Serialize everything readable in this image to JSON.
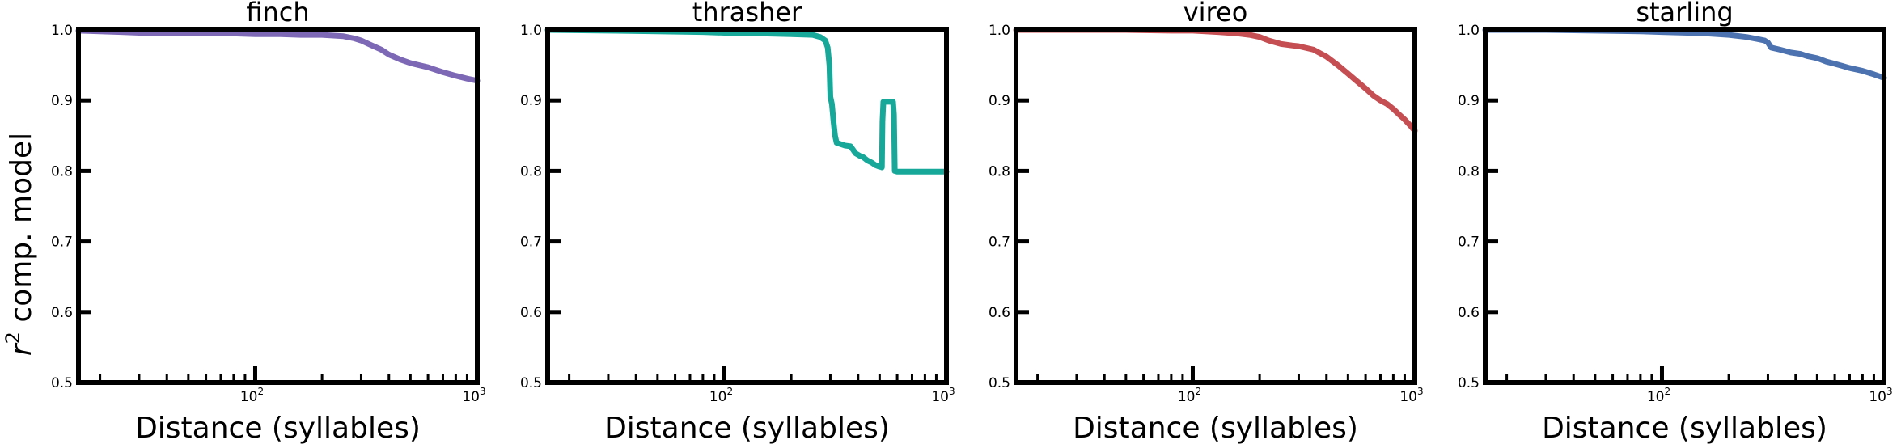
{
  "figure": {
    "ylabel_base": "r",
    "ylabel_sup": "2",
    "ylabel_rest": " comp. model"
  },
  "chart_data": [
    {
      "type": "line",
      "title": "finch",
      "xlabel": "Distance (syllables)",
      "xscale": "log",
      "xlim": [
        16,
        1000
      ],
      "ylim": [
        0.5,
        1.0
      ],
      "yticks": [
        0.5,
        0.6,
        0.7,
        0.8,
        0.9,
        1.0
      ],
      "color": "#7c68b5",
      "series": [
        {
          "x": [
            16,
            20,
            25,
            30,
            40,
            50,
            60,
            80,
            100,
            130,
            160,
            200,
            250,
            280,
            300,
            330,
            370,
            400,
            450,
            500,
            600,
            700,
            800,
            900,
            1000
          ],
          "y": [
            0.999,
            0.998,
            0.997,
            0.996,
            0.996,
            0.996,
            0.995,
            0.995,
            0.994,
            0.994,
            0.993,
            0.993,
            0.991,
            0.988,
            0.985,
            0.979,
            0.972,
            0.965,
            0.958,
            0.953,
            0.947,
            0.94,
            0.935,
            0.931,
            0.928
          ]
        }
      ]
    },
    {
      "type": "line",
      "title": "thrasher",
      "xlabel": "Distance (syllables)",
      "xscale": "log",
      "xlim": [
        16,
        1000
      ],
      "ylim": [
        0.5,
        1.0
      ],
      "yticks": [
        0.5,
        0.6,
        0.7,
        0.8,
        0.9,
        1.0
      ],
      "color": "#17a89a",
      "series": [
        {
          "x": [
            16,
            30,
            50,
            80,
            100,
            150,
            200,
            250,
            270,
            285,
            292,
            297,
            300,
            305,
            310,
            315,
            320,
            335,
            350,
            370,
            390,
            410,
            420,
            440,
            460,
            480,
            500,
            505,
            510,
            512,
            515,
            520,
            540,
            560,
            575,
            580,
            585,
            600,
            700,
            800,
            1000
          ],
          "y": [
            1.0,
            0.999,
            0.998,
            0.997,
            0.996,
            0.995,
            0.994,
            0.993,
            0.99,
            0.985,
            0.975,
            0.95,
            0.905,
            0.895,
            0.87,
            0.85,
            0.84,
            0.838,
            0.836,
            0.835,
            0.825,
            0.821,
            0.82,
            0.815,
            0.812,
            0.808,
            0.806,
            0.808,
            0.81,
            0.805,
            0.87,
            0.898,
            0.898,
            0.898,
            0.898,
            0.88,
            0.8,
            0.799,
            0.799,
            0.799,
            0.799
          ]
        }
      ]
    },
    {
      "type": "line",
      "title": "vireo",
      "xlabel": "Distance (syllables)",
      "xscale": "log",
      "xlim": [
        16,
        1000
      ],
      "ylim": [
        0.5,
        1.0
      ],
      "yticks": [
        0.5,
        0.6,
        0.7,
        0.8,
        0.9,
        1.0
      ],
      "color": "#c44e52",
      "series": [
        {
          "x": [
            16,
            30,
            50,
            80,
            100,
            130,
            160,
            180,
            200,
            220,
            250,
            280,
            300,
            350,
            400,
            450,
            500,
            550,
            600,
            650,
            700,
            750,
            800,
            850,
            900,
            950,
            1000
          ],
          "y": [
            1.0,
            1.0,
            1.0,
            0.999,
            0.999,
            0.997,
            0.995,
            0.993,
            0.99,
            0.985,
            0.98,
            0.978,
            0.977,
            0.972,
            0.962,
            0.95,
            0.938,
            0.927,
            0.917,
            0.907,
            0.9,
            0.895,
            0.888,
            0.88,
            0.873,
            0.865,
            0.857
          ]
        }
      ]
    },
    {
      "type": "line",
      "title": "starling",
      "xlabel": "Distance (syllables)",
      "xscale": "log",
      "xlim": [
        16,
        1000
      ],
      "ylim": [
        0.5,
        1.0
      ],
      "yticks": [
        0.5,
        0.6,
        0.7,
        0.8,
        0.9,
        1.0
      ],
      "color": "#4c72b0",
      "series": [
        {
          "x": [
            16,
            30,
            50,
            80,
            100,
            130,
            160,
            200,
            240,
            270,
            290,
            300,
            310,
            340,
            380,
            420,
            450,
            500,
            550,
            600,
            650,
            700,
            800,
            900,
            1000
          ],
          "y": [
            1.0,
            1.0,
            0.999,
            0.998,
            0.997,
            0.996,
            0.995,
            0.993,
            0.99,
            0.987,
            0.985,
            0.982,
            0.975,
            0.972,
            0.968,
            0.966,
            0.963,
            0.96,
            0.955,
            0.952,
            0.949,
            0.946,
            0.942,
            0.937,
            0.932
          ]
        }
      ]
    }
  ]
}
